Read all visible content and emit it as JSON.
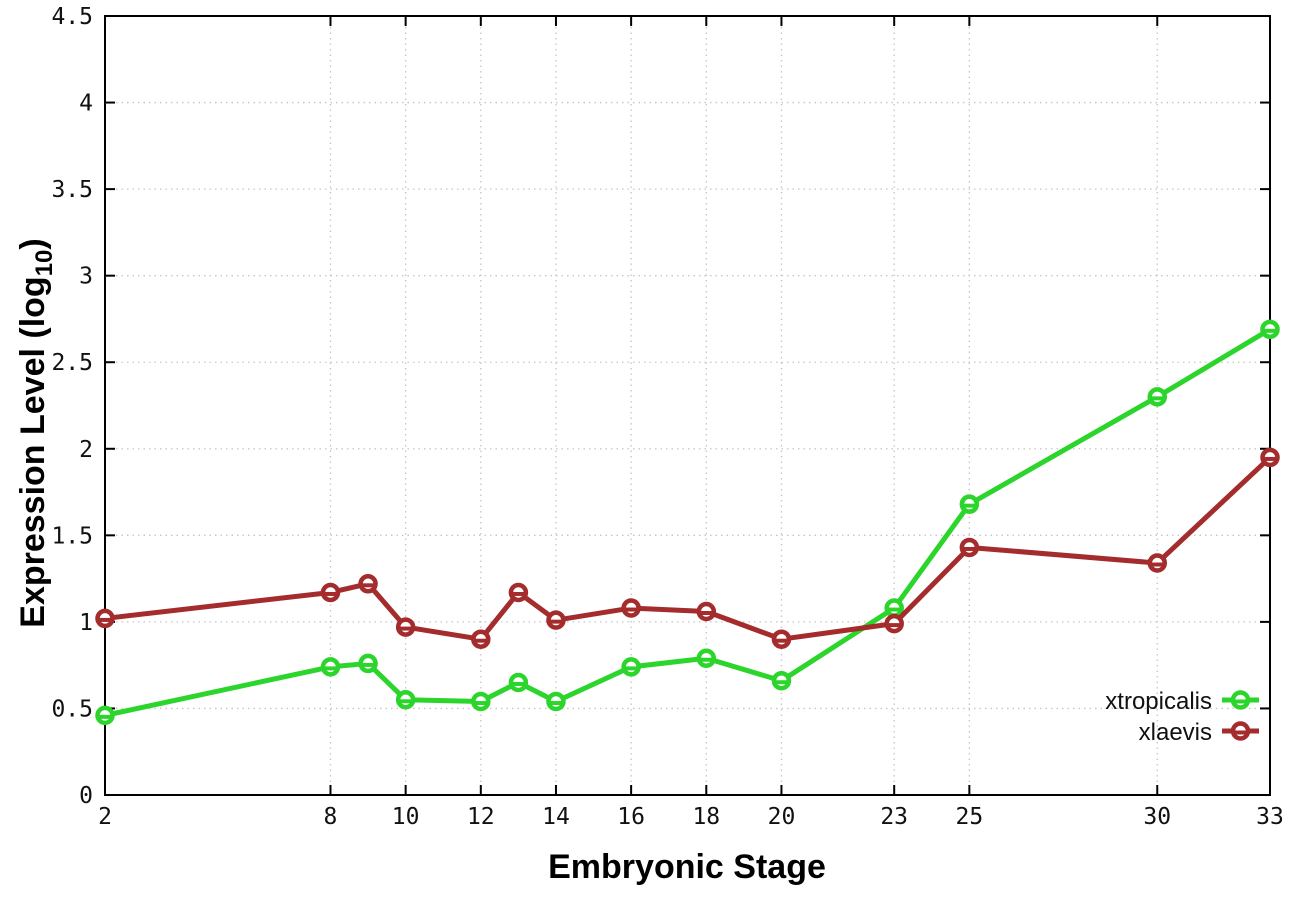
{
  "figure": {
    "background": "#ffffff",
    "axis_color": "#000000",
    "grid_color": "#c6c6c6"
  },
  "chart_data": {
    "type": "line",
    "title": "",
    "xlabel": "Embryonic Stage",
    "ylabel": "Expression Level (log10)",
    "ylabel_parts": {
      "base": "Expression Level (log",
      "sub": "10",
      "close": ")"
    },
    "xlim": [
      2,
      33
    ],
    "ylim": [
      0,
      4.5
    ],
    "xticks": [
      2,
      8,
      10,
      12,
      14,
      16,
      18,
      20,
      23,
      25,
      30,
      33
    ],
    "xtick_labels": [
      "2",
      "8",
      "10",
      "12",
      "14",
      "16",
      "18",
      "20",
      "23",
      "25",
      "30",
      "33"
    ],
    "yticks": [
      0,
      0.5,
      1,
      1.5,
      2,
      2.5,
      3,
      3.5,
      4,
      4.5
    ],
    "ytick_labels": [
      "0",
      "0.5",
      "1",
      "1.5",
      "2",
      "2.5",
      "3",
      "3.5",
      "4",
      "4.5"
    ],
    "grid": true,
    "legend_position": "inside-bottom-right",
    "x": [
      2,
      8,
      9,
      10,
      12,
      13,
      14,
      16,
      18,
      20,
      23,
      25,
      30,
      33
    ],
    "series": [
      {
        "name": "xtropicalis",
        "color": "#2bd52b",
        "marker": "open-circle",
        "values": [
          0.46,
          0.74,
          0.76,
          0.55,
          0.54,
          0.65,
          0.54,
          0.74,
          0.79,
          0.66,
          1.08,
          1.68,
          2.3,
          2.69
        ]
      },
      {
        "name": "xlaevis",
        "color": "#a42c2c",
        "marker": "open-circle",
        "values": [
          1.02,
          1.17,
          1.22,
          0.97,
          0.9,
          1.17,
          1.01,
          1.08,
          1.06,
          0.9,
          0.99,
          1.43,
          1.34,
          1.95
        ]
      }
    ]
  }
}
